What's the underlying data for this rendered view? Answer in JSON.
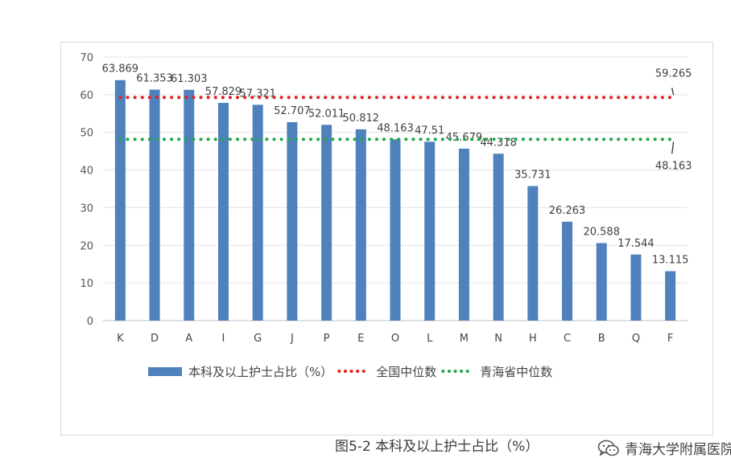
{
  "chart_data": {
    "type": "bar",
    "title": "",
    "caption": "图5-2 本科及以上护士占比（%）",
    "categories": [
      "K",
      "D",
      "A",
      "I",
      "G",
      "J",
      "P",
      "E",
      "O",
      "L",
      "M",
      "N",
      "H",
      "C",
      "B",
      "Q",
      "F"
    ],
    "series": [
      {
        "name": "本科及以上护士占比（%）",
        "type": "bar",
        "color": "#4f81bd",
        "values": [
          63.869,
          61.353,
          61.303,
          57.829,
          57.321,
          52.707,
          52.011,
          50.812,
          48.163,
          47.51,
          45.679,
          44.318,
          35.731,
          26.263,
          20.588,
          17.544,
          13.115
        ],
        "labels": [
          "63.869",
          "61.353",
          "61.303",
          "57.829",
          "57.321",
          "52.707",
          "52.011",
          "50.812",
          "48.163",
          "47.51",
          "45.679",
          "44.318",
          "35.731",
          "26.263",
          "20.588",
          "17.544",
          "13.115"
        ]
      },
      {
        "name": "全国中位数",
        "type": "dotted-line",
        "color": "#e32121",
        "value": 59.265,
        "label": "59.265"
      },
      {
        "name": "青海省中位数",
        "type": "dotted-line",
        "color": "#22a84a",
        "value": 48.163,
        "label": "48.163"
      }
    ],
    "ylim": [
      0,
      70
    ],
    "yticks": [
      "0",
      "10",
      "20",
      "30",
      "40",
      "50",
      "60",
      "70"
    ],
    "legend_position": "bottom",
    "grid": true
  },
  "watermark": {
    "icon": "wechat-icon",
    "text": "青海大学附属医院"
  }
}
